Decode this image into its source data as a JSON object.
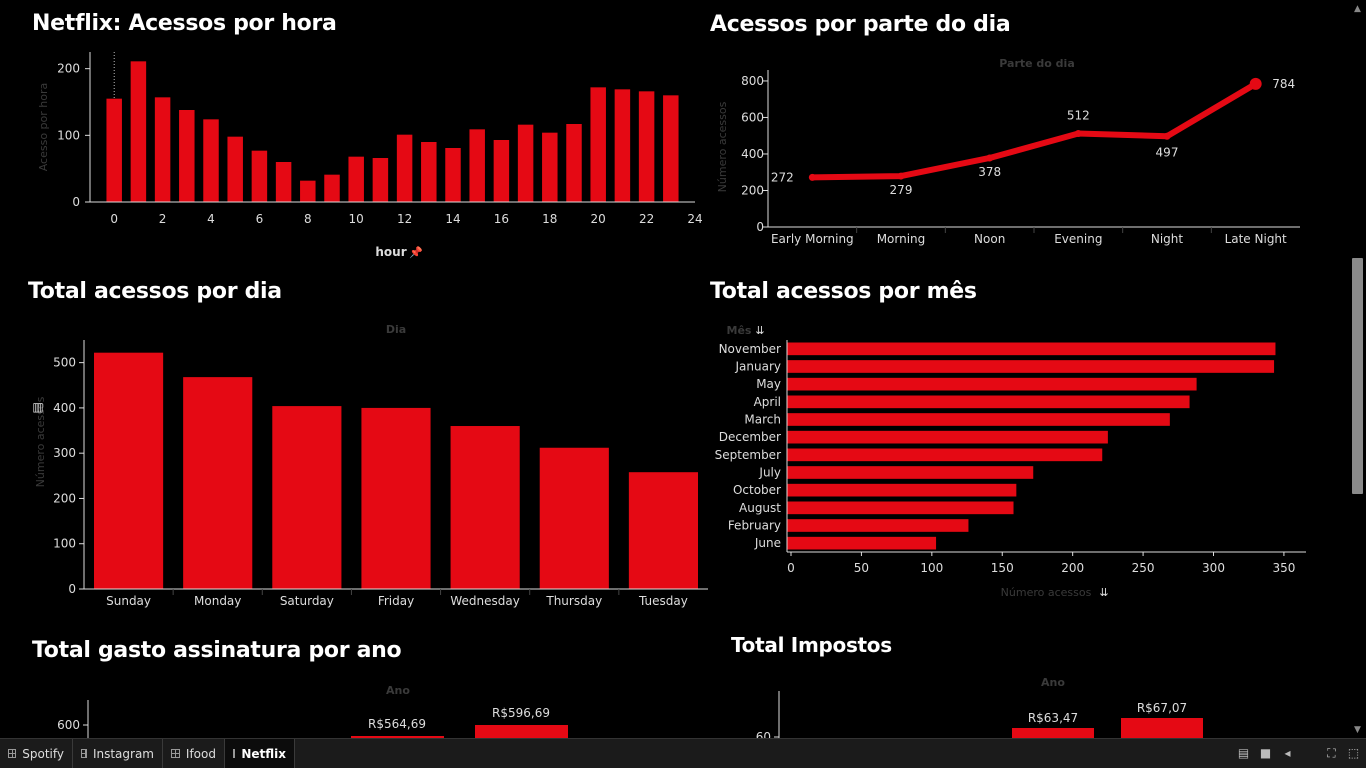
{
  "titles": {
    "hour": "Netflix: Acessos por hora",
    "period": "Acessos por parte do dia",
    "day": "Total acessos por dia",
    "month": "Total acessos por mês",
    "year": "Total gasto assinatura por ano",
    "tax": "Total Impostos"
  },
  "tabs": [
    {
      "label": "Spotify",
      "active": false
    },
    {
      "label": "Instagram",
      "active": false
    },
    {
      "label": "Ifood",
      "active": false
    },
    {
      "label": "Netflix",
      "active": true
    }
  ],
  "colors": {
    "bar": "#e50914",
    "axis": "#dddddd",
    "muted": "#3a3a3a",
    "background": "#000000"
  },
  "icons": {
    "pin": "pin-icon",
    "sort": "sort-icon",
    "bars": "bar-chart-icon"
  },
  "chart_data": [
    {
      "id": "hour",
      "type": "bar",
      "x": [
        0,
        1,
        2,
        3,
        4,
        5,
        6,
        7,
        8,
        9,
        10,
        11,
        12,
        13,
        14,
        15,
        16,
        17,
        18,
        19,
        20,
        21,
        22,
        23
      ],
      "values": [
        155,
        211,
        157,
        138,
        124,
        98,
        77,
        60,
        32,
        41,
        68,
        66,
        101,
        90,
        81,
        109,
        93,
        116,
        104,
        117,
        172,
        169,
        166,
        160
      ],
      "xlabel": "hour",
      "ylabel": "Acesso por hora",
      "xticks": [
        0,
        2,
        4,
        6,
        8,
        10,
        12,
        14,
        16,
        18,
        20,
        22,
        24
      ],
      "yticks": [
        0,
        100,
        200
      ],
      "ylim": [
        0,
        225
      ],
      "xlim": [
        -1,
        24
      ]
    },
    {
      "id": "period",
      "type": "line",
      "categories": [
        "Early Morning",
        "Morning",
        "Noon",
        "Evening",
        "Night",
        "Late Night"
      ],
      "values": [
        272,
        279,
        378,
        512,
        497,
        784
      ],
      "header": "Parte do dia",
      "ylabel": "Número acessos",
      "yticks": [
        0,
        200,
        400,
        600,
        800
      ],
      "ylim": [
        0,
        860
      ]
    },
    {
      "id": "day",
      "type": "bar",
      "categories": [
        "Sunday",
        "Monday",
        "Saturday",
        "Friday",
        "Wednesday",
        "Thursday",
        "Tuesday"
      ],
      "values": [
        522,
        468,
        404,
        400,
        360,
        312,
        258
      ],
      "header": "Dia",
      "ylabel": "Número acessos",
      "yticks": [
        0,
        100,
        200,
        300,
        400,
        500
      ],
      "ylim": [
        0,
        550
      ]
    },
    {
      "id": "month",
      "type": "bar",
      "orientation": "horizontal",
      "categories": [
        "November",
        "January",
        "May",
        "April",
        "March",
        "December",
        "September",
        "July",
        "October",
        "August",
        "February",
        "June"
      ],
      "values": [
        344,
        343,
        288,
        283,
        269,
        225,
        221,
        172,
        160,
        158,
        126,
        103
      ],
      "header": "Mês",
      "xlabel": "Número acessos",
      "xticks": [
        0,
        50,
        100,
        150,
        200,
        250,
        300,
        350
      ],
      "xlim": [
        0,
        360
      ]
    },
    {
      "id": "year",
      "type": "bar",
      "header": "Ano",
      "yticks": [
        600
      ],
      "data_labels": [
        "R$564,69",
        "R$596,69"
      ],
      "values": [
        564.69,
        596.69
      ]
    },
    {
      "id": "tax",
      "type": "bar",
      "header": "Ano",
      "yticks": [
        60
      ],
      "data_labels": [
        "R$63,47",
        "R$67,07"
      ],
      "values": [
        63.47,
        67.07
      ]
    }
  ]
}
